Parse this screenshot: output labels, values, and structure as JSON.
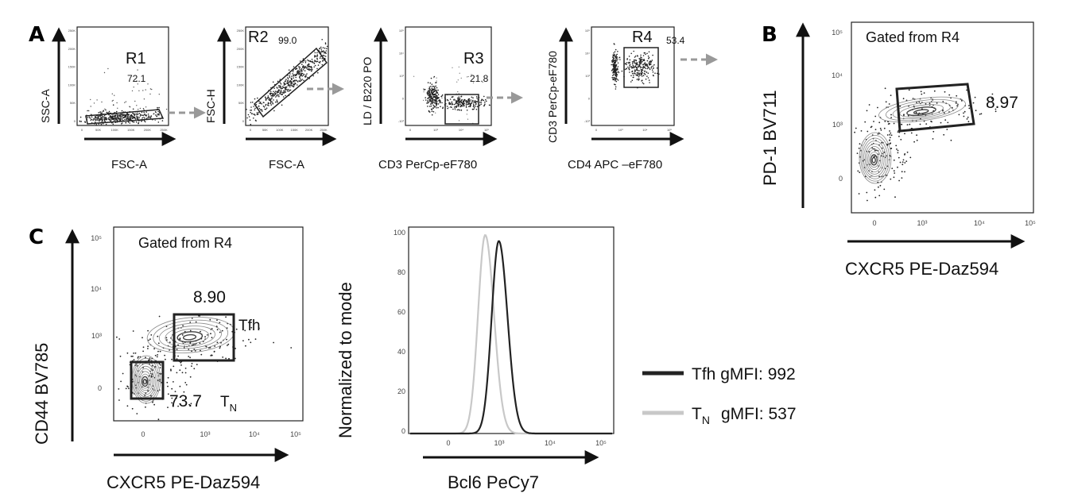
{
  "chart_data": [
    {
      "type": "scatter",
      "panel": "A",
      "plots": [
        {
          "gate": "R1",
          "percent": "72.1",
          "xlabel": "FSC-A",
          "ylabel": "SSC-A",
          "xticks": [
            "0",
            "50K",
            "100K",
            "150K",
            "200K",
            "250K"
          ],
          "yticks": [
            "0",
            "50K",
            "100K",
            "150K",
            "200K",
            "250K"
          ]
        },
        {
          "gate": "R2",
          "percent": "99.0",
          "xlabel": "FSC-A",
          "ylabel": "FSC-H",
          "xticks": [
            "0",
            "50K",
            "100K",
            "150K",
            "200K",
            "250K"
          ],
          "yticks": [
            "0",
            "50K",
            "100K",
            "150K",
            "200K",
            "250K"
          ]
        },
        {
          "gate": "R3",
          "percent": "21.8",
          "xlabel": "CD3 PerCp-eF780",
          "ylabel": "LD / B220 PO",
          "xticks": [
            "0",
            "10³",
            "10⁴",
            "10⁵"
          ],
          "yticks": [
            "-10³",
            "0",
            "10³",
            "10⁴",
            "10⁵"
          ]
        },
        {
          "gate": "R4",
          "percent": "53.4",
          "xlabel": "CD4 APC –eF780",
          "ylabel": "CD3 PerCp-eF780",
          "xticks": [
            "0",
            "10³",
            "10⁴",
            "10⁵"
          ],
          "yticks": [
            "-10³",
            "0",
            "10³",
            "10⁴",
            "10⁵"
          ]
        }
      ]
    },
    {
      "type": "scatter",
      "panel": "B",
      "annotation": "Gated from R4",
      "gate_percent": "8.97",
      "xlabel": "CXCR5 PE-Daz594",
      "ylabel": "PD-1 BV711",
      "xticks": [
        "0",
        "10³",
        "10⁴",
        "10⁵"
      ],
      "yticks": [
        "0",
        "10³",
        "10⁴",
        "10⁵"
      ]
    },
    {
      "type": "scatter",
      "panel": "C",
      "annotation": "Gated from R4",
      "gates": [
        {
          "name": "Tfh",
          "percent": "8.90"
        },
        {
          "name": "T",
          "subscript": "N",
          "percent": "73.7"
        }
      ],
      "xlabel": "CXCR5 PE-Daz594",
      "ylabel": "CD44 BV785",
      "xticks": [
        "0",
        "10³",
        "10⁴",
        "10⁵"
      ],
      "yticks": [
        "0",
        "10³",
        "10⁴",
        "10⁵"
      ]
    },
    {
      "type": "line",
      "panel": "C",
      "xlabel": "Bcl6 PeCy7",
      "ylabel": "Normalized to mode",
      "xticks": [
        "0",
        "10³",
        "10⁴",
        "10⁵"
      ],
      "yticks": [
        "0",
        "20",
        "40",
        "60",
        "80",
        "100"
      ],
      "ylim": [
        0,
        100
      ],
      "series": [
        {
          "name": "Tfh",
          "stat": "gMFI: 992",
          "color": "#222222",
          "peak_x": 980,
          "peak_y": 97
        },
        {
          "name": "T",
          "subscript": "N",
          "stat": "gMFI: 537",
          "color": "#c8c8c8",
          "peak_x": 530,
          "peak_y": 100
        }
      ]
    }
  ],
  "panel_labels": [
    "A",
    "B",
    "C"
  ]
}
